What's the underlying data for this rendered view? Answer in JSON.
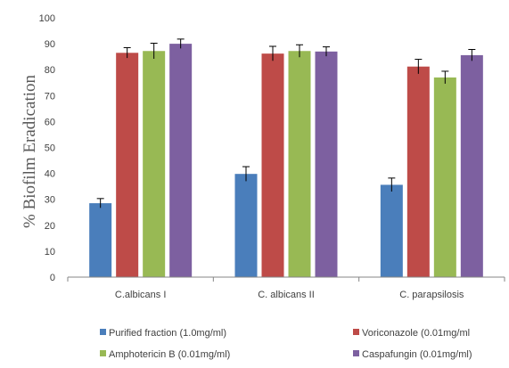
{
  "chart_data": {
    "type": "bar",
    "title": "",
    "ylabel": "% Biofilm Eradication",
    "xlabel": "",
    "ylim": [
      0,
      100
    ],
    "yticks": [
      0,
      10,
      20,
      30,
      40,
      50,
      60,
      70,
      80,
      90,
      100
    ],
    "categories": [
      "C.albicans I",
      "C. albicans II",
      "C. parapsilosis"
    ],
    "series": [
      {
        "name": "Purified fraction (1.0mg/ml)",
        "color": "#4a7ebb",
        "values": [
          28.5,
          39.8,
          35.6
        ],
        "errors": [
          1.8,
          2.8,
          2.6
        ]
      },
      {
        "name": "Voriconazole (0.01mg/ml",
        "color": "#be4b48",
        "values": [
          86.5,
          86.2,
          81.2
        ],
        "errors": [
          2.0,
          2.8,
          2.8
        ]
      },
      {
        "name": "Amphotericin B (0.01mg/ml)",
        "color": "#98b954",
        "values": [
          87.2,
          87.2,
          77.0
        ],
        "errors": [
          3.0,
          2.4,
          2.4
        ]
      },
      {
        "name": "Caspafungin (0.01mg/ml)",
        "color": "#7d60a0",
        "values": [
          90.0,
          87.0,
          85.6
        ],
        "errors": [
          1.8,
          1.8,
          2.2
        ]
      }
    ],
    "legend_position": "bottom",
    "grid": false
  }
}
